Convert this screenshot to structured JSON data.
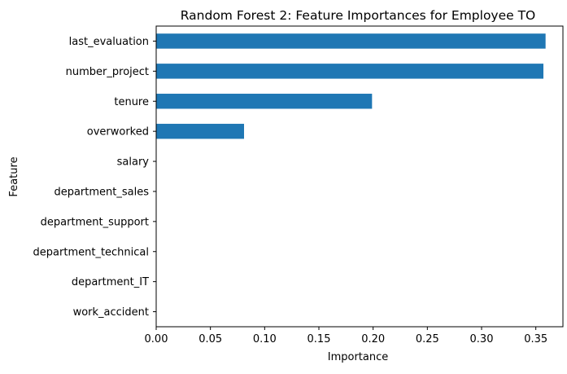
{
  "chart_data": {
    "type": "bar",
    "orientation": "horizontal",
    "title": "Random Forest 2: Feature Importances for Employee TO",
    "xlabel": "Importance",
    "ylabel": "Feature",
    "xlim": [
      0,
      0.375
    ],
    "xticks": [
      0.0,
      0.05,
      0.1,
      0.15,
      0.2,
      0.25,
      0.3,
      0.35
    ],
    "xtick_labels": [
      "0.00",
      "0.05",
      "0.10",
      "0.15",
      "0.20",
      "0.25",
      "0.30",
      "0.35"
    ],
    "grid": false,
    "bar_color": "#1f77b4",
    "categories": [
      "last_evaluation",
      "number_project",
      "tenure",
      "overworked",
      "salary",
      "department_sales",
      "department_support",
      "department_technical",
      "department_IT",
      "work_accident"
    ],
    "values": [
      0.359,
      0.357,
      0.199,
      0.081,
      0.0,
      0.0,
      0.0,
      0.0,
      0.0,
      0.0
    ]
  }
}
